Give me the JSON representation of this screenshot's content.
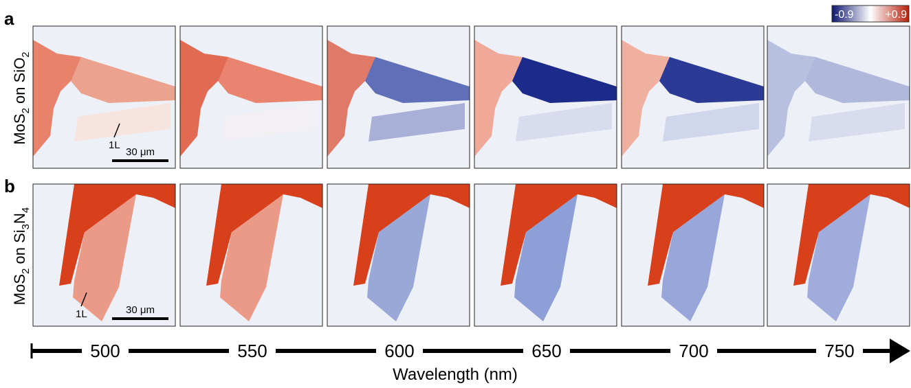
{
  "figure": {
    "panel_a": {
      "letter": "a",
      "ylabel": [
        "MoS",
        "2",
        " on SiO",
        "2"
      ],
      "annotation": "1L",
      "scale_bar": "30 μm"
    },
    "panel_b": {
      "letter": "b",
      "ylabel": [
        "MoS",
        "2",
        " on Si",
        "3",
        "N",
        "4"
      ],
      "annotation": "1L",
      "scale_bar": "30 μm"
    },
    "colorbar": {
      "min_label": "-0.9",
      "max_label": "+0.9"
    },
    "wavelengths": [
      "500",
      "550",
      "600",
      "650",
      "700",
      "750"
    ],
    "xlabel": "Wavelength (nm)"
  }
}
